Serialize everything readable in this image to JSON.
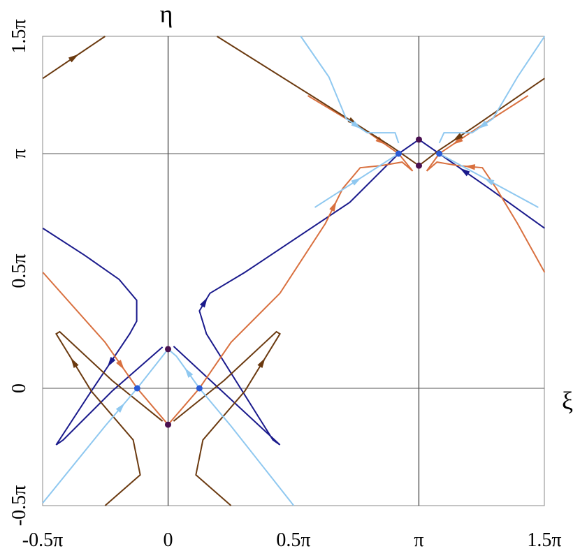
{
  "chart_data": {
    "type": "line",
    "x_label": "ξ",
    "y_label": "η",
    "xlim": [
      -0.5,
      1.5
    ],
    "ylim": [
      -0.5,
      1.5
    ],
    "xticks": [
      {
        "value": -0.5,
        "label": "-0.5π"
      },
      0,
      {
        "value": 0.5,
        "label": "0.5π"
      },
      {
        "value": 1,
        "label": "π"
      },
      {
        "value": 1.5,
        "label": "1.5π"
      }
    ],
    "yticks": [
      {
        "value": -0.5,
        "label": "-0.5π"
      },
      0,
      {
        "value": 0.5,
        "label": "0.5π"
      },
      {
        "value": 1,
        "label": "π"
      },
      {
        "value": 1.5,
        "label": "1.5π"
      }
    ],
    "xgrid": [
      0,
      1
    ],
    "ygrid": [
      0,
      1
    ],
    "series": [
      {
        "color": "#1a1a8c",
        "x": [
          -0.499,
          -0.334,
          -0.195,
          -0.125,
          -0.125,
          -0.153,
          -0.306,
          -0.446,
          -0.418,
          -0.223,
          -0.022
        ],
        "values": [
          0.682,
          0.568,
          0.464,
          0.375,
          0.286,
          0.232,
          -0.012,
          -0.241,
          -0.22,
          -0.012,
          0.176
        ]
      },
      {
        "color": "#1a1a8c",
        "x": [
          0.022,
          0.446,
          0.418,
          0.153,
          0.125,
          0.167,
          0.306,
          0.724,
          0.919,
          1.0
        ],
        "values": [
          0.179,
          -0.241,
          -0.22,
          0.232,
          0.33,
          0.405,
          0.494,
          0.792,
          1.0,
          1.06
        ]
      },
      {
        "color": "#1a1a8c",
        "x": [
          1.501,
          1.281,
          1.081,
          1.0
        ],
        "values": [
          0.682,
          0.851,
          1.0,
          1.06
        ]
      },
      {
        "color": "#d9703f",
        "x": [
          -0.499,
          -0.251,
          -0.123,
          0.0
        ],
        "values": [
          0.494,
          0.196,
          0.0,
          -0.155
        ]
      },
      {
        "color": "#d9703f",
        "x": [
          0.0,
          0.125,
          0.251,
          0.446,
          0.627,
          0.696,
          0.766,
          0.85,
          0.933,
          0.975
        ],
        "values": [
          -0.155,
          0.0,
          0.196,
          0.405,
          0.702,
          0.851,
          0.94,
          0.949,
          0.964,
          0.926
        ]
      },
      {
        "color": "#d9703f",
        "x": [
          1.501,
          1.393,
          1.309,
          1.253,
          1.156,
          1.072,
          1.031
        ],
        "values": [
          0.494,
          0.702,
          0.851,
          0.94,
          0.949,
          0.964,
          0.926
        ]
      },
      {
        "color": "#d9703f",
        "x": [
          0.557,
          0.78,
          0.919,
          0.975
        ],
        "values": [
          1.247,
          1.104,
          1.0,
          0.926
        ]
      },
      {
        "color": "#d9703f",
        "x": [
          1.435,
          1.226,
          1.081,
          1.031
        ],
        "values": [
          1.247,
          1.104,
          1.0,
          0.926
        ]
      },
      {
        "color": "#6b3a10",
        "x": [
          -0.251,
          -0.111,
          -0.139,
          -0.306,
          -0.446,
          -0.432,
          -0.223,
          -0.022
        ],
        "values": [
          -0.5,
          -0.369,
          -0.22,
          -0.012,
          0.232,
          0.241,
          0.033,
          -0.14
        ]
      },
      {
        "color": "#6b3a10",
        "x": [
          0.251,
          0.111,
          0.139,
          0.306,
          0.446,
          0.432,
          0.223,
          0.022
        ],
        "values": [
          -0.5,
          -0.369,
          -0.22,
          -0.012,
          0.232,
          0.241,
          0.033,
          -0.14
        ]
      },
      {
        "color": "#6b3a10",
        "x": [
          -0.499,
          -0.251
        ],
        "values": [
          1.321,
          1.5
        ]
      },
      {
        "color": "#6b3a10",
        "x": [
          0.195,
          0.585,
          0.891,
          1.0
        ],
        "values": [
          1.5,
          1.238,
          1.03,
          0.949
        ]
      },
      {
        "color": "#6b3a10",
        "x": [
          1.501,
          1.226,
          1.081,
          1.0
        ],
        "values": [
          1.321,
          1.119,
          1.015,
          0.949
        ]
      },
      {
        "color": "#8fc8f0",
        "x": [
          -0.499,
          -0.251,
          -0.123,
          0.0
        ],
        "values": [
          -0.488,
          -0.161,
          0.0,
          0.167
        ]
      },
      {
        "color": "#8fc8f0",
        "x": [
          0.501,
          0.251,
          0.125,
          0.033,
          0.0
        ],
        "values": [
          -0.5,
          -0.161,
          0.0,
          0.137,
          0.167
        ]
      },
      {
        "color": "#8fc8f0",
        "x": [
          0.529,
          0.641,
          0.71,
          0.794,
          0.905,
          0.919
        ],
        "values": [
          1.5,
          1.327,
          1.149,
          1.089,
          1.089,
          1.045
        ]
      },
      {
        "color": "#8fc8f0",
        "x": [
          0.585,
          0.919
        ],
        "values": [
          0.771,
          1.0
        ]
      },
      {
        "color": "#8fc8f0",
        "x": [
          1.501,
          1.393,
          1.295,
          1.212,
          1.1,
          1.081
        ],
        "values": [
          1.5,
          1.327,
          1.149,
          1.089,
          1.089,
          1.045
        ]
      },
      {
        "color": "#8fc8f0",
        "x": [
          1.476,
          1.081
        ],
        "values": [
          0.771,
          1.0
        ]
      },
      {
        "type": "scatter",
        "color": "#2a5bd7",
        "x": [
          -0.123,
          0.125,
          0.919,
          1.081
        ],
        "values": [
          0.0,
          0.0,
          1.0,
          1.0
        ]
      },
      {
        "type": "scatter",
        "color": "#4a1050",
        "x": [
          0.0,
          0.0,
          1.0,
          1.0
        ],
        "values": [
          0.167,
          -0.155,
          1.06,
          0.949
        ]
      }
    ]
  }
}
